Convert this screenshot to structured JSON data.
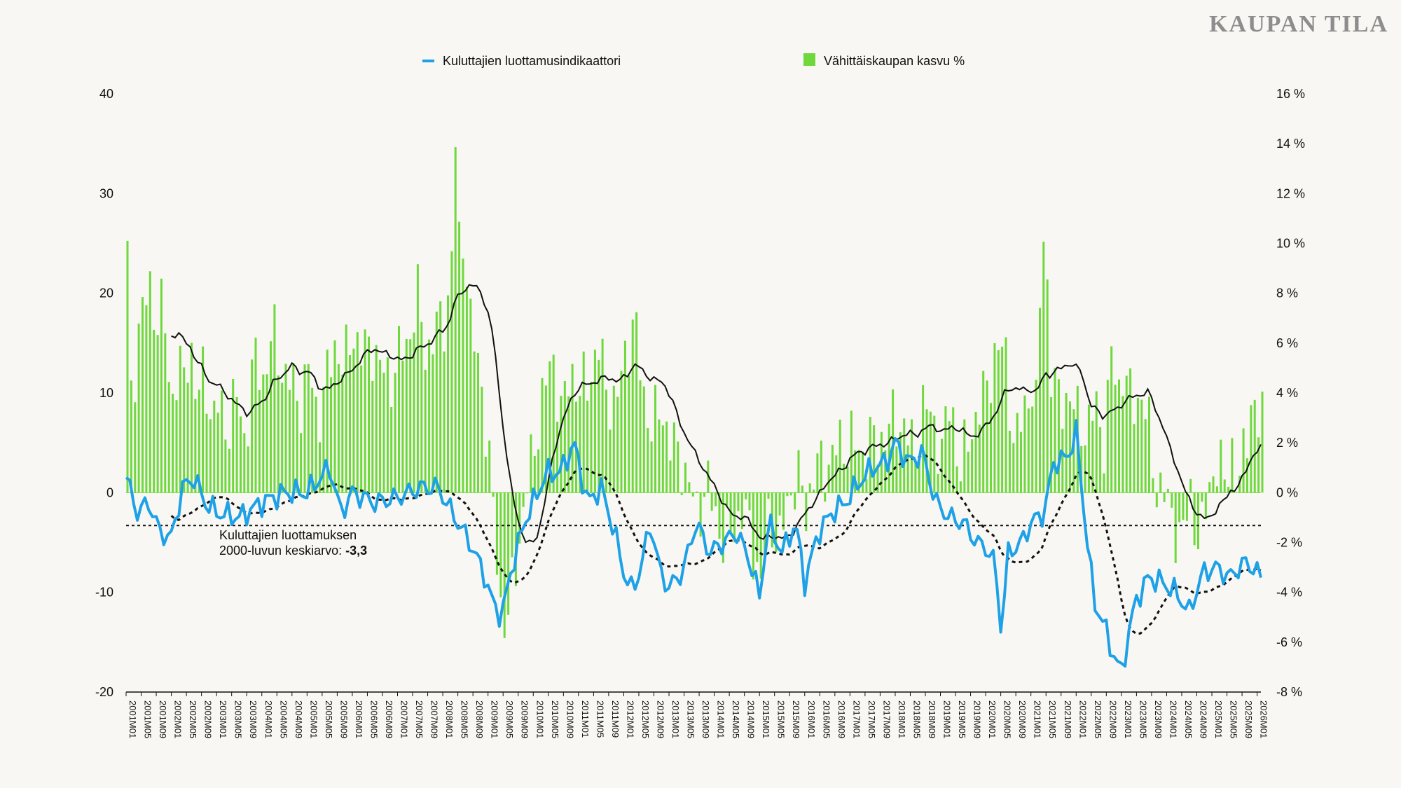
{
  "brand": "KAUPAN TILA",
  "chart_data": {
    "type": "bar+line",
    "title": "",
    "legend": [
      {
        "label": "Kuluttajien luottamusindikaattori",
        "color": "#1ea1e6",
        "kind": "line"
      },
      {
        "label": "Vähittäiskaupan kasvu %",
        "color": "#6fd83c",
        "kind": "bar"
      }
    ],
    "legend_position": "top-center",
    "left_axis": {
      "min": -20,
      "max": 40,
      "ticks": [
        "-20",
        "-10",
        "0",
        "10",
        "20",
        "30",
        "40"
      ]
    },
    "right_axis": {
      "min": -8,
      "max": 16,
      "ticks": [
        "-8 %",
        "-6 %",
        "-4 %",
        "-2 %",
        "0 %",
        "2 %",
        "4 %",
        "6 %",
        "8 %",
        "10 %",
        "12 %",
        "14 %",
        "16 %"
      ]
    },
    "x_start": {
      "year": 2001,
      "month": 1
    },
    "x_end": {
      "year": 2026,
      "month": 2
    },
    "x_tick_labels": [
      "2001M01",
      "2001M05",
      "2001M09",
      "2002M01",
      "2002M05",
      "2002M09",
      "2003M01",
      "2003M05",
      "2003M09",
      "2004M01",
      "2004M05",
      "2004M09",
      "2005M01",
      "2005M05",
      "2005M09",
      "2006M01",
      "2006M05",
      "2006M09",
      "2007M01",
      "2007M05",
      "2007M09",
      "2008M01",
      "2008M05",
      "2008M09",
      "2009M01",
      "2009M05",
      "2009M09",
      "2010M01",
      "2010M05",
      "2010M09",
      "2011M01",
      "2011M05",
      "2011M09",
      "2012M01",
      "2012M05",
      "2012M09",
      "2013M01",
      "2013M05",
      "2013M09",
      "2014M01",
      "2014M05",
      "2014M09",
      "2015M01",
      "2015M05",
      "2015M09",
      "2016M01",
      "2016M05",
      "2016M09",
      "2017M01",
      "2017M05",
      "2017M09",
      "2018M01",
      "2018M05",
      "2018M09",
      "2019M01",
      "2019M05",
      "2019M09",
      "2020M01",
      "2020M05",
      "2020M09",
      "2021M01",
      "2021M05",
      "2021M09",
      "2022M01",
      "2022M05",
      "2022M09",
      "2023M01",
      "2023M05",
      "2023M09",
      "2024M01",
      "2024M05",
      "2024M09",
      "2025M01",
      "2025M05",
      "2025M09",
      "2026M01"
    ],
    "average_line": {
      "value": -3.3,
      "label_line1": "Kuluttajien luottamuksen",
      "label_line2": "2000-luvun keskiarvo: ",
      "label_value": "-3,3"
    },
    "confidence_anchors": [
      [
        2001.0,
        1.5
      ],
      [
        2001.25,
        -2.0
      ],
      [
        2001.5,
        -1.0
      ],
      [
        2001.75,
        -4.0
      ],
      [
        2002.0,
        -4.5
      ],
      [
        2002.25,
        0.5
      ],
      [
        2002.5,
        1.5
      ],
      [
        2002.75,
        -1.0
      ],
      [
        2003.0,
        -2.0
      ],
      [
        2003.5,
        -2.5
      ],
      [
        2004.0,
        -1.0
      ],
      [
        2004.5,
        0.0
      ],
      [
        2005.0,
        0.0
      ],
      [
        2005.5,
        2.5
      ],
      [
        2005.75,
        -2.0
      ],
      [
        2006.0,
        0.0
      ],
      [
        2006.5,
        -1.0
      ],
      [
        2007.0,
        -0.5
      ],
      [
        2007.5,
        0.5
      ],
      [
        2007.9,
        0.5
      ],
      [
        2008.2,
        -2.0
      ],
      [
        2008.6,
        -5.0
      ],
      [
        2008.9,
        -8.0
      ],
      [
        2009.1,
        -11.0
      ],
      [
        2009.3,
        -12.5
      ],
      [
        2009.5,
        -8.0
      ],
      [
        2009.8,
        -3.0
      ],
      [
        2010.0,
        -1.0
      ],
      [
        2010.3,
        2.0
      ],
      [
        2010.6,
        2.0
      ],
      [
        2010.9,
        5.0
      ],
      [
        2011.0,
        3.0
      ],
      [
        2011.2,
        -1.0
      ],
      [
        2011.5,
        0.5
      ],
      [
        2011.8,
        -4.0
      ],
      [
        2012.0,
        -8.0
      ],
      [
        2012.2,
        -10.0
      ],
      [
        2012.4,
        -7.0
      ],
      [
        2012.6,
        -3.0
      ],
      [
        2012.8,
        -8.0
      ],
      [
        2013.0,
        -9.5
      ],
      [
        2013.3,
        -8.0
      ],
      [
        2013.6,
        -3.0
      ],
      [
        2013.9,
        -6.0
      ],
      [
        2014.2,
        -5.0
      ],
      [
        2014.5,
        -4.0
      ],
      [
        2014.8,
        -7.0
      ],
      [
        2015.0,
        -10.5
      ],
      [
        2015.2,
        -3.0
      ],
      [
        2015.5,
        -6.0
      ],
      [
        2015.8,
        -3.0
      ],
      [
        2016.0,
        -9.0
      ],
      [
        2016.3,
        -4.0
      ],
      [
        2016.6,
        -2.0
      ],
      [
        2016.9,
        -1.0
      ],
      [
        2017.2,
        1.0
      ],
      [
        2017.5,
        2.5
      ],
      [
        2017.8,
        3.0
      ],
      [
        2018.0,
        5.0
      ],
      [
        2018.3,
        3.0
      ],
      [
        2018.6,
        4.0
      ],
      [
        2018.9,
        -1.0
      ],
      [
        2019.2,
        -2.5
      ],
      [
        2019.5,
        -3.0
      ],
      [
        2019.8,
        -5.0
      ],
      [
        2020.0,
        -5.5
      ],
      [
        2020.2,
        -7.0
      ],
      [
        2020.35,
        -14.0
      ],
      [
        2020.5,
        -6.0
      ],
      [
        2020.8,
        -5.0
      ],
      [
        2021.0,
        -3.0
      ],
      [
        2021.3,
        -2.0
      ],
      [
        2021.5,
        3.0
      ],
      [
        2021.8,
        3.5
      ],
      [
        2022.0,
        6.0
      ],
      [
        2022.2,
        -3.0
      ],
      [
        2022.4,
        -11.0
      ],
      [
        2022.6,
        -13.0
      ],
      [
        2022.8,
        -16.0
      ],
      [
        2023.0,
        -18.0
      ],
      [
        2023.3,
        -11.0
      ],
      [
        2023.6,
        -8.5
      ],
      [
        2023.9,
        -9.0
      ],
      [
        2024.2,
        -10.0
      ],
      [
        2024.5,
        -12.0
      ],
      [
        2024.8,
        -8.0
      ],
      [
        2025.1,
        -7.5
      ],
      [
        2025.4,
        -8.5
      ],
      [
        2025.7,
        -7.0
      ],
      [
        2025.9,
        -7.5
      ],
      [
        2026.05,
        -8.0
      ],
      [
        2026.15,
        -10.5
      ]
    ],
    "sales_anchors": [
      [
        2001.0,
        9.5
      ],
      [
        2001.1,
        2.5
      ],
      [
        2001.2,
        6.3
      ],
      [
        2001.35,
        7.5
      ],
      [
        2001.5,
        8.0
      ],
      [
        2001.65,
        7.0
      ],
      [
        2001.8,
        7.5
      ],
      [
        2001.95,
        3.5
      ],
      [
        2002.1,
        5.0
      ],
      [
        2002.25,
        4.5
      ],
      [
        2002.4,
        6.0
      ],
      [
        2002.55,
        3.5
      ],
      [
        2002.7,
        5.0
      ],
      [
        2002.85,
        3.0
      ],
      [
        2003.0,
        3.5
      ],
      [
        2003.2,
        2.5
      ],
      [
        2003.4,
        4.0
      ],
      [
        2003.6,
        2.0
      ],
      [
        2003.8,
        5.5
      ],
      [
        2004.0,
        4.5
      ],
      [
        2004.2,
        6.5
      ],
      [
        2004.4,
        5.0
      ],
      [
        2004.6,
        4.5
      ],
      [
        2004.8,
        3.5
      ],
      [
        2005.0,
        5.0
      ],
      [
        2005.2,
        3.0
      ],
      [
        2005.4,
        4.5
      ],
      [
        2005.6,
        6.0
      ],
      [
        2005.8,
        5.0
      ],
      [
        2006.0,
        6.5
      ],
      [
        2006.2,
        5.5
      ],
      [
        2006.4,
        6.0
      ],
      [
        2006.6,
        5.0
      ],
      [
        2006.8,
        4.5
      ],
      [
        2007.0,
        5.5
      ],
      [
        2007.2,
        6.0
      ],
      [
        2007.4,
        8.0
      ],
      [
        2007.6,
        5.5
      ],
      [
        2007.8,
        6.5
      ],
      [
        2008.0,
        7.0
      ],
      [
        2008.15,
        8.5
      ],
      [
        2008.25,
        14.0
      ],
      [
        2008.35,
        9.0
      ],
      [
        2008.45,
        11.0
      ],
      [
        2008.55,
        7.0
      ],
      [
        2008.65,
        6.0
      ],
      [
        2008.8,
        5.0
      ],
      [
        2008.95,
        2.0
      ],
      [
        2009.1,
        -1.0
      ],
      [
        2009.25,
        -4.5
      ],
      [
        2009.4,
        -5.5
      ],
      [
        2009.55,
        -3.0
      ],
      [
        2009.7,
        -1.5
      ],
      [
        2009.85,
        0.5
      ],
      [
        2010.0,
        2.0
      ],
      [
        2010.2,
        4.0
      ],
      [
        2010.4,
        5.5
      ],
      [
        2010.6,
        3.0
      ],
      [
        2010.8,
        5.0
      ],
      [
        2011.0,
        4.0
      ],
      [
        2011.2,
        4.5
      ],
      [
        2011.4,
        6.0
      ],
      [
        2011.6,
        4.0
      ],
      [
        2011.8,
        3.5
      ],
      [
        2012.0,
        5.5
      ],
      [
        2012.2,
        7.0
      ],
      [
        2012.4,
        4.0
      ],
      [
        2012.6,
        2.5
      ],
      [
        2012.8,
        3.5
      ],
      [
        2013.0,
        2.0
      ],
      [
        2013.2,
        1.5
      ],
      [
        2013.4,
        0.5
      ],
      [
        2013.6,
        -1.0
      ],
      [
        2013.8,
        0.5
      ],
      [
        2014.0,
        -1.0
      ],
      [
        2014.2,
        -2.0
      ],
      [
        2014.4,
        -1.5
      ],
      [
        2014.6,
        -0.5
      ],
      [
        2014.8,
        -2.0
      ],
      [
        2015.0,
        -3.5
      ],
      [
        2015.2,
        -1.0
      ],
      [
        2015.4,
        -2.0
      ],
      [
        2015.6,
        -0.5
      ],
      [
        2015.8,
        1.0
      ],
      [
        2016.0,
        -1.0
      ],
      [
        2016.2,
        1.5
      ],
      [
        2016.4,
        0.5
      ],
      [
        2016.6,
        2.0
      ],
      [
        2016.8,
        1.5
      ],
      [
        2017.0,
        2.5
      ],
      [
        2017.2,
        1.0
      ],
      [
        2017.4,
        2.5
      ],
      [
        2017.6,
        1.5
      ],
      [
        2017.8,
        3.0
      ],
      [
        2018.0,
        2.5
      ],
      [
        2018.2,
        3.0
      ],
      [
        2018.4,
        1.0
      ],
      [
        2018.6,
        4.0
      ],
      [
        2018.8,
        2.5
      ],
      [
        2019.0,
        2.0
      ],
      [
        2019.2,
        3.5
      ],
      [
        2019.4,
        1.0
      ],
      [
        2019.6,
        2.0
      ],
      [
        2019.8,
        3.5
      ],
      [
        2020.0,
        4.0
      ],
      [
        2020.2,
        6.0
      ],
      [
        2020.4,
        5.5
      ],
      [
        2020.6,
        2.0
      ],
      [
        2020.8,
        3.0
      ],
      [
        2021.0,
        4.5
      ],
      [
        2021.1,
        3.0
      ],
      [
        2021.2,
        9.5
      ],
      [
        2021.28,
        11.0
      ],
      [
        2021.4,
        5.0
      ],
      [
        2021.6,
        3.5
      ],
      [
        2021.8,
        4.0
      ],
      [
        2022.0,
        3.0
      ],
      [
        2022.2,
        2.5
      ],
      [
        2022.4,
        3.5
      ],
      [
        2022.6,
        2.0
      ],
      [
        2022.75,
        5.5
      ],
      [
        2022.9,
        4.0
      ],
      [
        2023.0,
        5.0
      ],
      [
        2023.2,
        3.5
      ],
      [
        2023.4,
        4.0
      ],
      [
        2023.55,
        3.0
      ],
      [
        2023.7,
        0.5
      ],
      [
        2023.9,
        0.0
      ],
      [
        2024.1,
        -1.0
      ],
      [
        2024.3,
        -2.0
      ],
      [
        2024.5,
        0.0
      ],
      [
        2024.7,
        -2.5
      ],
      [
        2024.9,
        0.5
      ],
      [
        2025.1,
        1.0
      ],
      [
        2025.25,
        0.5
      ],
      [
        2025.4,
        2.0
      ],
      [
        2025.55,
        -0.5
      ],
      [
        2025.7,
        2.5
      ],
      [
        2025.85,
        3.5
      ],
      [
        2026.0,
        2.5
      ],
      [
        2026.1,
        3.5
      ],
      [
        2026.15,
        1.5
      ]
    ]
  }
}
